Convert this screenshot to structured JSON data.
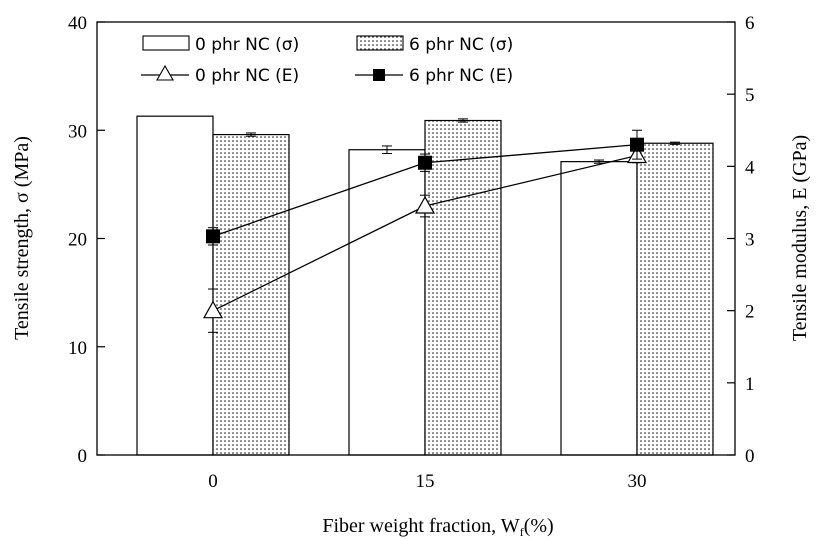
{
  "chart_data": {
    "type": "bar",
    "title": "",
    "categories": [
      "0",
      "15",
      "30"
    ],
    "xlabel": "Fiber weight fraction, W",
    "xlabel_sub": "f",
    "xlabel_suffix": "(%)",
    "ylabel_left": "Tensile strength, σ (MPa)",
    "ylabel_right": "Tensile modulus, E (GPa)",
    "ylim_left": [
      0,
      40
    ],
    "ylim_right": [
      0,
      6
    ],
    "yticks_left": [
      "0",
      "10",
      "20",
      "30",
      "40"
    ],
    "yticks_right": [
      "0",
      "1",
      "2",
      "3",
      "4",
      "5",
      "6"
    ],
    "bar_series": [
      {
        "name": "0 phr NC (σ)",
        "values": [
          31.3,
          28.2,
          27.1
        ],
        "errors": [
          0,
          0.35,
          0.15
        ],
        "fill": "#ffffff"
      },
      {
        "name": "6 phr NC (σ)",
        "values": [
          29.6,
          30.9,
          28.8
        ],
        "errors": [
          0.15,
          0.15,
          0.1
        ],
        "fill": "dotted"
      }
    ],
    "line_series": [
      {
        "name": "0 phr NC (E)",
        "values": [
          2.0,
          3.45,
          4.15
        ],
        "errors": [
          0.3,
          0.15,
          0.1
        ],
        "marker": "open-triangle"
      },
      {
        "name": "6 phr NC (E)",
        "values": [
          3.03,
          4.05,
          4.3
        ],
        "errors": [
          0.12,
          0.12,
          0.2
        ],
        "marker": "filled-square"
      }
    ],
    "legend_position": "top"
  }
}
